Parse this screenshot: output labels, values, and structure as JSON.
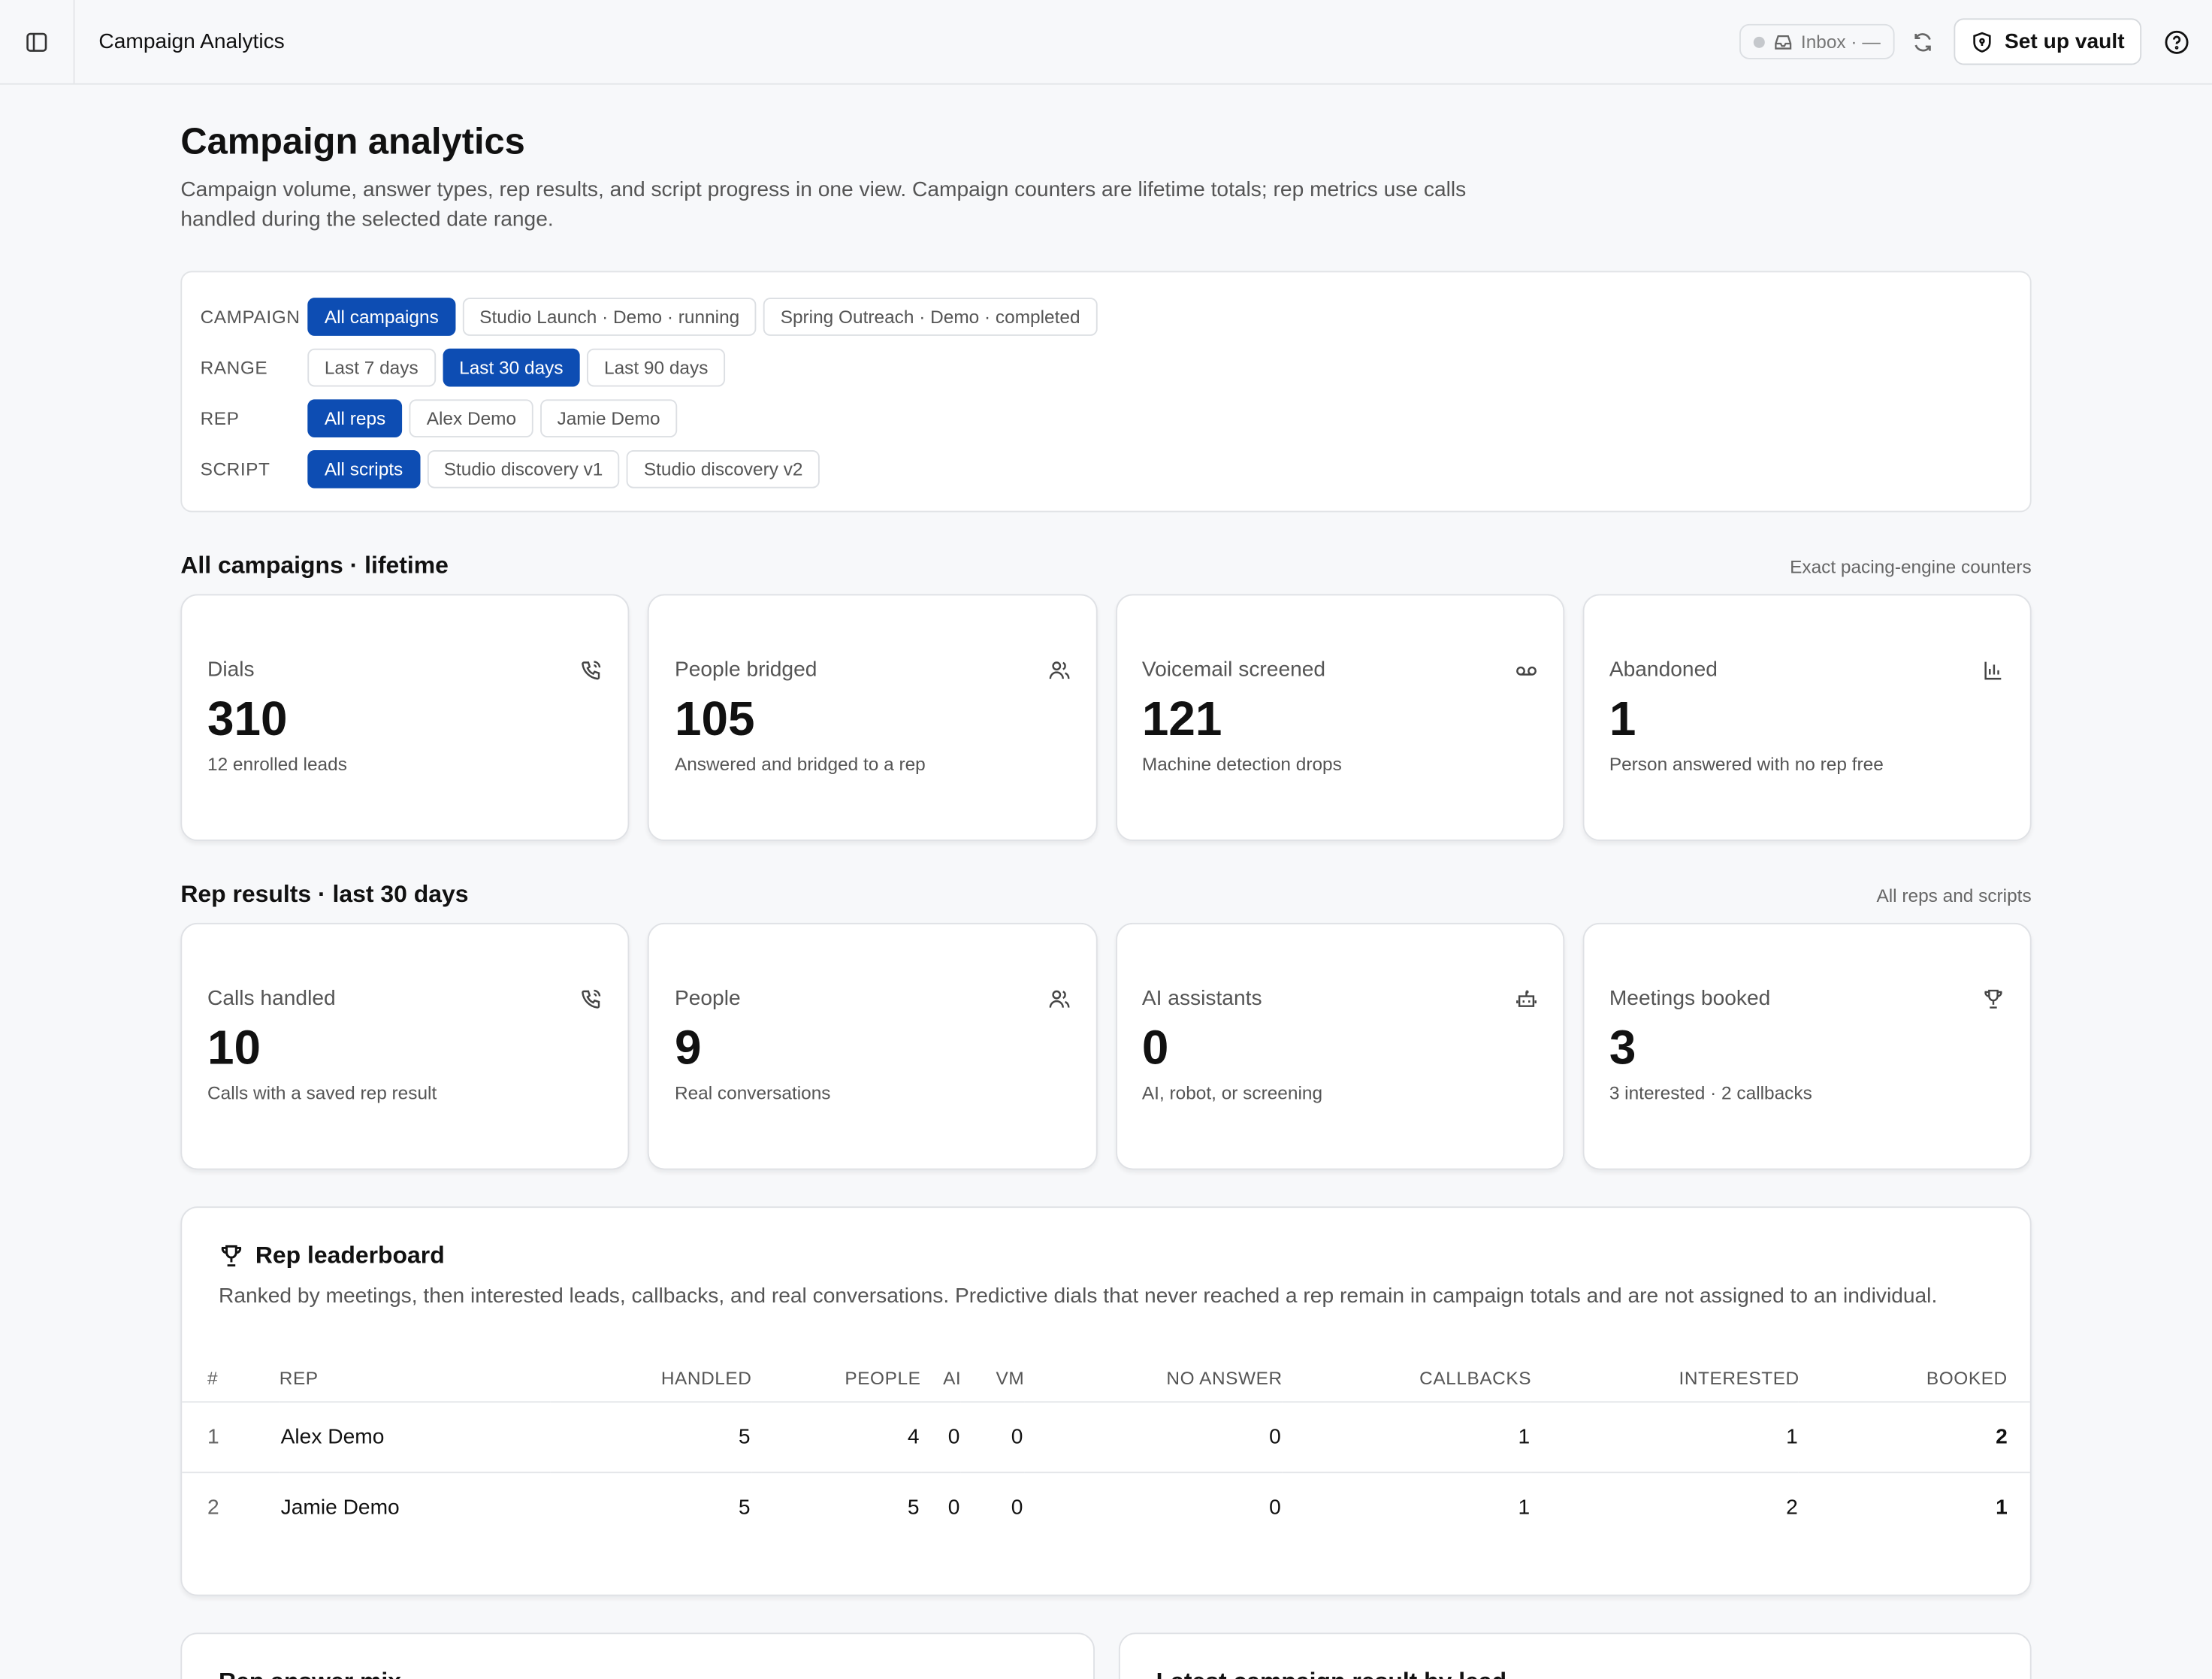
{
  "header": {
    "title": "Campaign Analytics",
    "inbox": "Inbox · —",
    "vault_button": "Set up vault"
  },
  "page": {
    "title": "Campaign analytics",
    "description": "Campaign volume, answer types, rep results, and script progress in one view. Campaign counters are lifetime totals; rep metrics use calls handled during the selected date range."
  },
  "filters": [
    {
      "label": "CAMPAIGN",
      "options": [
        "All campaigns",
        "Studio Launch · Demo · running",
        "Spring Outreach · Demo · completed"
      ],
      "selected": 0
    },
    {
      "label": "RANGE",
      "options": [
        "Last 7 days",
        "Last 30 days",
        "Last 90 days"
      ],
      "selected": 1
    },
    {
      "label": "REP",
      "options": [
        "All reps",
        "Alex Demo",
        "Jamie Demo"
      ],
      "selected": 0
    },
    {
      "label": "SCRIPT",
      "options": [
        "All scripts",
        "Studio discovery v1",
        "Studio discovery v2"
      ],
      "selected": 0
    }
  ],
  "sections": [
    {
      "title": "All campaigns · lifetime",
      "note": "Exact pacing-engine counters",
      "cards": [
        {
          "label": "Dials",
          "value": 310,
          "caption": "12 enrolled leads"
        },
        {
          "label": "People bridged",
          "value": 105,
          "caption": "Answered and bridged to a rep"
        },
        {
          "label": "Voicemail screened",
          "value": 121,
          "caption": "Machine detection drops"
        },
        {
          "label": "Abandoned",
          "value": 1,
          "caption": "Person answered with no rep free"
        }
      ]
    },
    {
      "title": "Rep results · last 30 days",
      "note": "All reps and scripts",
      "cards": [
        {
          "label": "Calls handled",
          "value": 10,
          "caption": "Calls with a saved rep result"
        },
        {
          "label": "People",
          "value": 9,
          "caption": "Real conversations"
        },
        {
          "label": "AI assistants",
          "value": 0,
          "caption": "AI, robot, or screening"
        },
        {
          "label": "Meetings booked",
          "value": 3,
          "caption": "3 interested · 2 callbacks"
        }
      ]
    }
  ],
  "leaderboard": {
    "title": "Rep leaderboard",
    "description": "Ranked by meetings, then interested leads, callbacks, and real conversations. Predictive dials that never reached a rep remain in campaign totals and are not assigned to an individual.",
    "columns": [
      "#",
      "REP",
      "HANDLED",
      "PEOPLE",
      "AI",
      "VM",
      "NO ANSWER",
      "CALLBACKS",
      "INTERESTED",
      "BOOKED"
    ],
    "rows": [
      [
        1,
        "Alex Demo",
        5,
        4,
        0,
        0,
        0,
        1,
        1,
        2
      ],
      [
        2,
        "Jamie Demo",
        5,
        5,
        0,
        0,
        0,
        1,
        2,
        1
      ]
    ]
  },
  "panels": [
    "Rep answer mix",
    "Latest campaign result by lead"
  ]
}
